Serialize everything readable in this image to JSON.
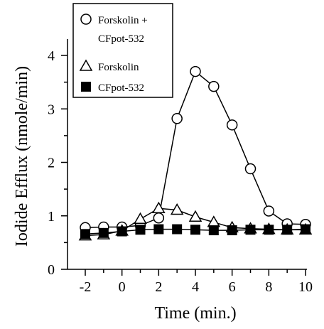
{
  "chart_data": {
    "type": "line",
    "title": "",
    "xlabel": "Time (min.)",
    "ylabel": "Iodide Efflux (nmole/min)",
    "xlim": [
      -2,
      10
    ],
    "ylim": [
      0,
      4
    ],
    "xticks": [
      -2,
      0,
      2,
      4,
      6,
      8,
      10
    ],
    "yticks": [
      0,
      1,
      2,
      3,
      4
    ],
    "grid": false,
    "legend_position": "top-left",
    "series": [
      {
        "name": "Forskolin + CFpot-532",
        "legend_lines": [
          "Forskolin +",
          "CFpot-532"
        ],
        "marker": "circle-open",
        "color": "#000000",
        "x": [
          -2,
          -1,
          0,
          1,
          2,
          3,
          4,
          5,
          6,
          7,
          8,
          9,
          10
        ],
        "y": [
          0.78,
          0.79,
          0.79,
          0.82,
          0.96,
          2.82,
          3.7,
          3.42,
          2.7,
          1.88,
          1.09,
          0.85,
          0.84
        ]
      },
      {
        "name": "Forskolin",
        "legend_lines": [
          "Forskolin"
        ],
        "marker": "triangle-open",
        "color": "#000000",
        "x": [
          -2,
          -1,
          0,
          1,
          2,
          3,
          4,
          5,
          6,
          7,
          8,
          9,
          10
        ],
        "y": [
          0.63,
          0.65,
          0.72,
          0.94,
          1.14,
          1.11,
          0.98,
          0.88,
          0.78,
          0.76,
          0.75,
          0.74,
          0.74
        ]
      },
      {
        "name": "CFpot-532",
        "legend_lines": [
          "CFpot-532"
        ],
        "marker": "square-filled",
        "color": "#000000",
        "x": [
          -2,
          -1,
          0,
          1,
          2,
          3,
          4,
          5,
          6,
          7,
          8,
          9,
          10
        ],
        "y": [
          0.66,
          0.68,
          0.71,
          0.74,
          0.75,
          0.75,
          0.74,
          0.73,
          0.73,
          0.74,
          0.74,
          0.74,
          0.75
        ]
      }
    ]
  }
}
